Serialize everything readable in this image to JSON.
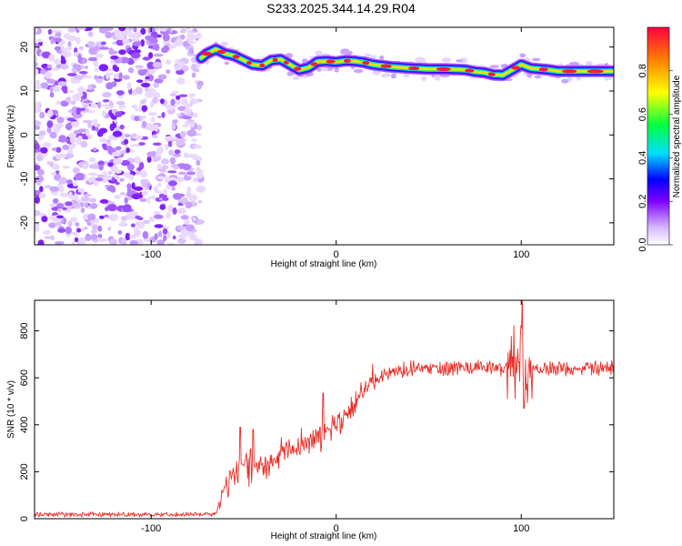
{
  "title": "S233.2025.344.14.29.R04",
  "chart_data": [
    {
      "type": "heatmap",
      "name": "spectrogram",
      "xlabel": "Height of straight line (km)",
      "ylabel": "Frequency (Hz)",
      "xlim": [
        -163,
        150
      ],
      "ylim": [
        -25,
        24.5
      ],
      "xticks": [
        -100,
        0,
        100
      ],
      "yticks": [
        -20,
        -10,
        0,
        10,
        20
      ],
      "tick_labels_x": [
        "-100",
        "0",
        "100"
      ],
      "tick_labels_y": [
        "-20",
        "-10",
        "0",
        "10",
        "20"
      ],
      "noise_region_x": [
        -163,
        -73
      ],
      "ridge": {
        "x": [
          -73,
          -70,
          -65,
          -60,
          -55,
          -50,
          -45,
          -40,
          -35,
          -30,
          -25,
          -20,
          -15,
          -10,
          -5,
          0,
          5,
          10,
          15,
          20,
          30,
          40,
          50,
          60,
          70,
          75,
          80,
          85,
          90,
          95,
          100,
          105,
          110,
          115,
          120,
          130,
          140,
          150
        ],
        "y": [
          17.5,
          18.5,
          19.5,
          18.5,
          18.0,
          17.0,
          16.0,
          15.8,
          17.0,
          17.2,
          16.0,
          14.8,
          15.3,
          16.7,
          16.8,
          16.6,
          16.9,
          16.8,
          16.5,
          16.0,
          15.5,
          15.2,
          15.0,
          15.0,
          14.8,
          14.4,
          14.2,
          13.7,
          13.6,
          14.8,
          16.0,
          15.2,
          15.0,
          14.8,
          14.5,
          14.5,
          14.5,
          14.5
        ]
      }
    },
    {
      "type": "colorbar",
      "name": "colorbar",
      "label": "Normalized spectral amplitude",
      "range": [
        0,
        1
      ],
      "ticks": [
        0.0,
        0.2,
        0.4,
        0.6,
        0.8
      ],
      "tick_labels": [
        "0.0",
        "0.2",
        "0.4",
        "0.6",
        "0.8"
      ],
      "colors": [
        "#ffffff",
        "#d4b8ff",
        "#8000ff",
        "#0000ff",
        "#00e0ff",
        "#00ff40",
        "#ffff00",
        "#ff8000",
        "#ff0040"
      ]
    },
    {
      "type": "line",
      "name": "snr",
      "xlabel": "Height of straight line (km)",
      "ylabel": "SNR (10 * v/v)",
      "xlim": [
        -163,
        150
      ],
      "ylim": [
        0,
        930
      ],
      "xticks": [
        -100,
        0,
        100
      ],
      "yticks": [
        0,
        200,
        400,
        600,
        800
      ],
      "tick_labels_x": [
        "-100",
        "0",
        "100"
      ],
      "tick_labels_y": [
        "0",
        "200",
        "400",
        "600",
        "800"
      ],
      "color": "#e8302a",
      "series": [
        {
          "name": "SNR envelope",
          "x": [
            -163,
            -140,
            -120,
            -100,
            -80,
            -65,
            -60,
            -55,
            -50,
            -45,
            -40,
            -35,
            -30,
            -25,
            -20,
            -15,
            -10,
            -5,
            0,
            5,
            10,
            15,
            20,
            25,
            30,
            40,
            50,
            60,
            70,
            80,
            90,
            95,
            100,
            102,
            105,
            110,
            120,
            130,
            140,
            150
          ],
          "y": [
            18,
            18,
            18,
            18,
            18,
            20,
            150,
            190,
            230,
            220,
            210,
            240,
            270,
            290,
            310,
            320,
            350,
            380,
            400,
            440,
            490,
            540,
            580,
            610,
            625,
            640,
            640,
            640,
            645,
            645,
            640,
            650,
            760,
            600,
            640,
            640,
            640,
            640,
            640,
            645
          ]
        }
      ]
    }
  ]
}
